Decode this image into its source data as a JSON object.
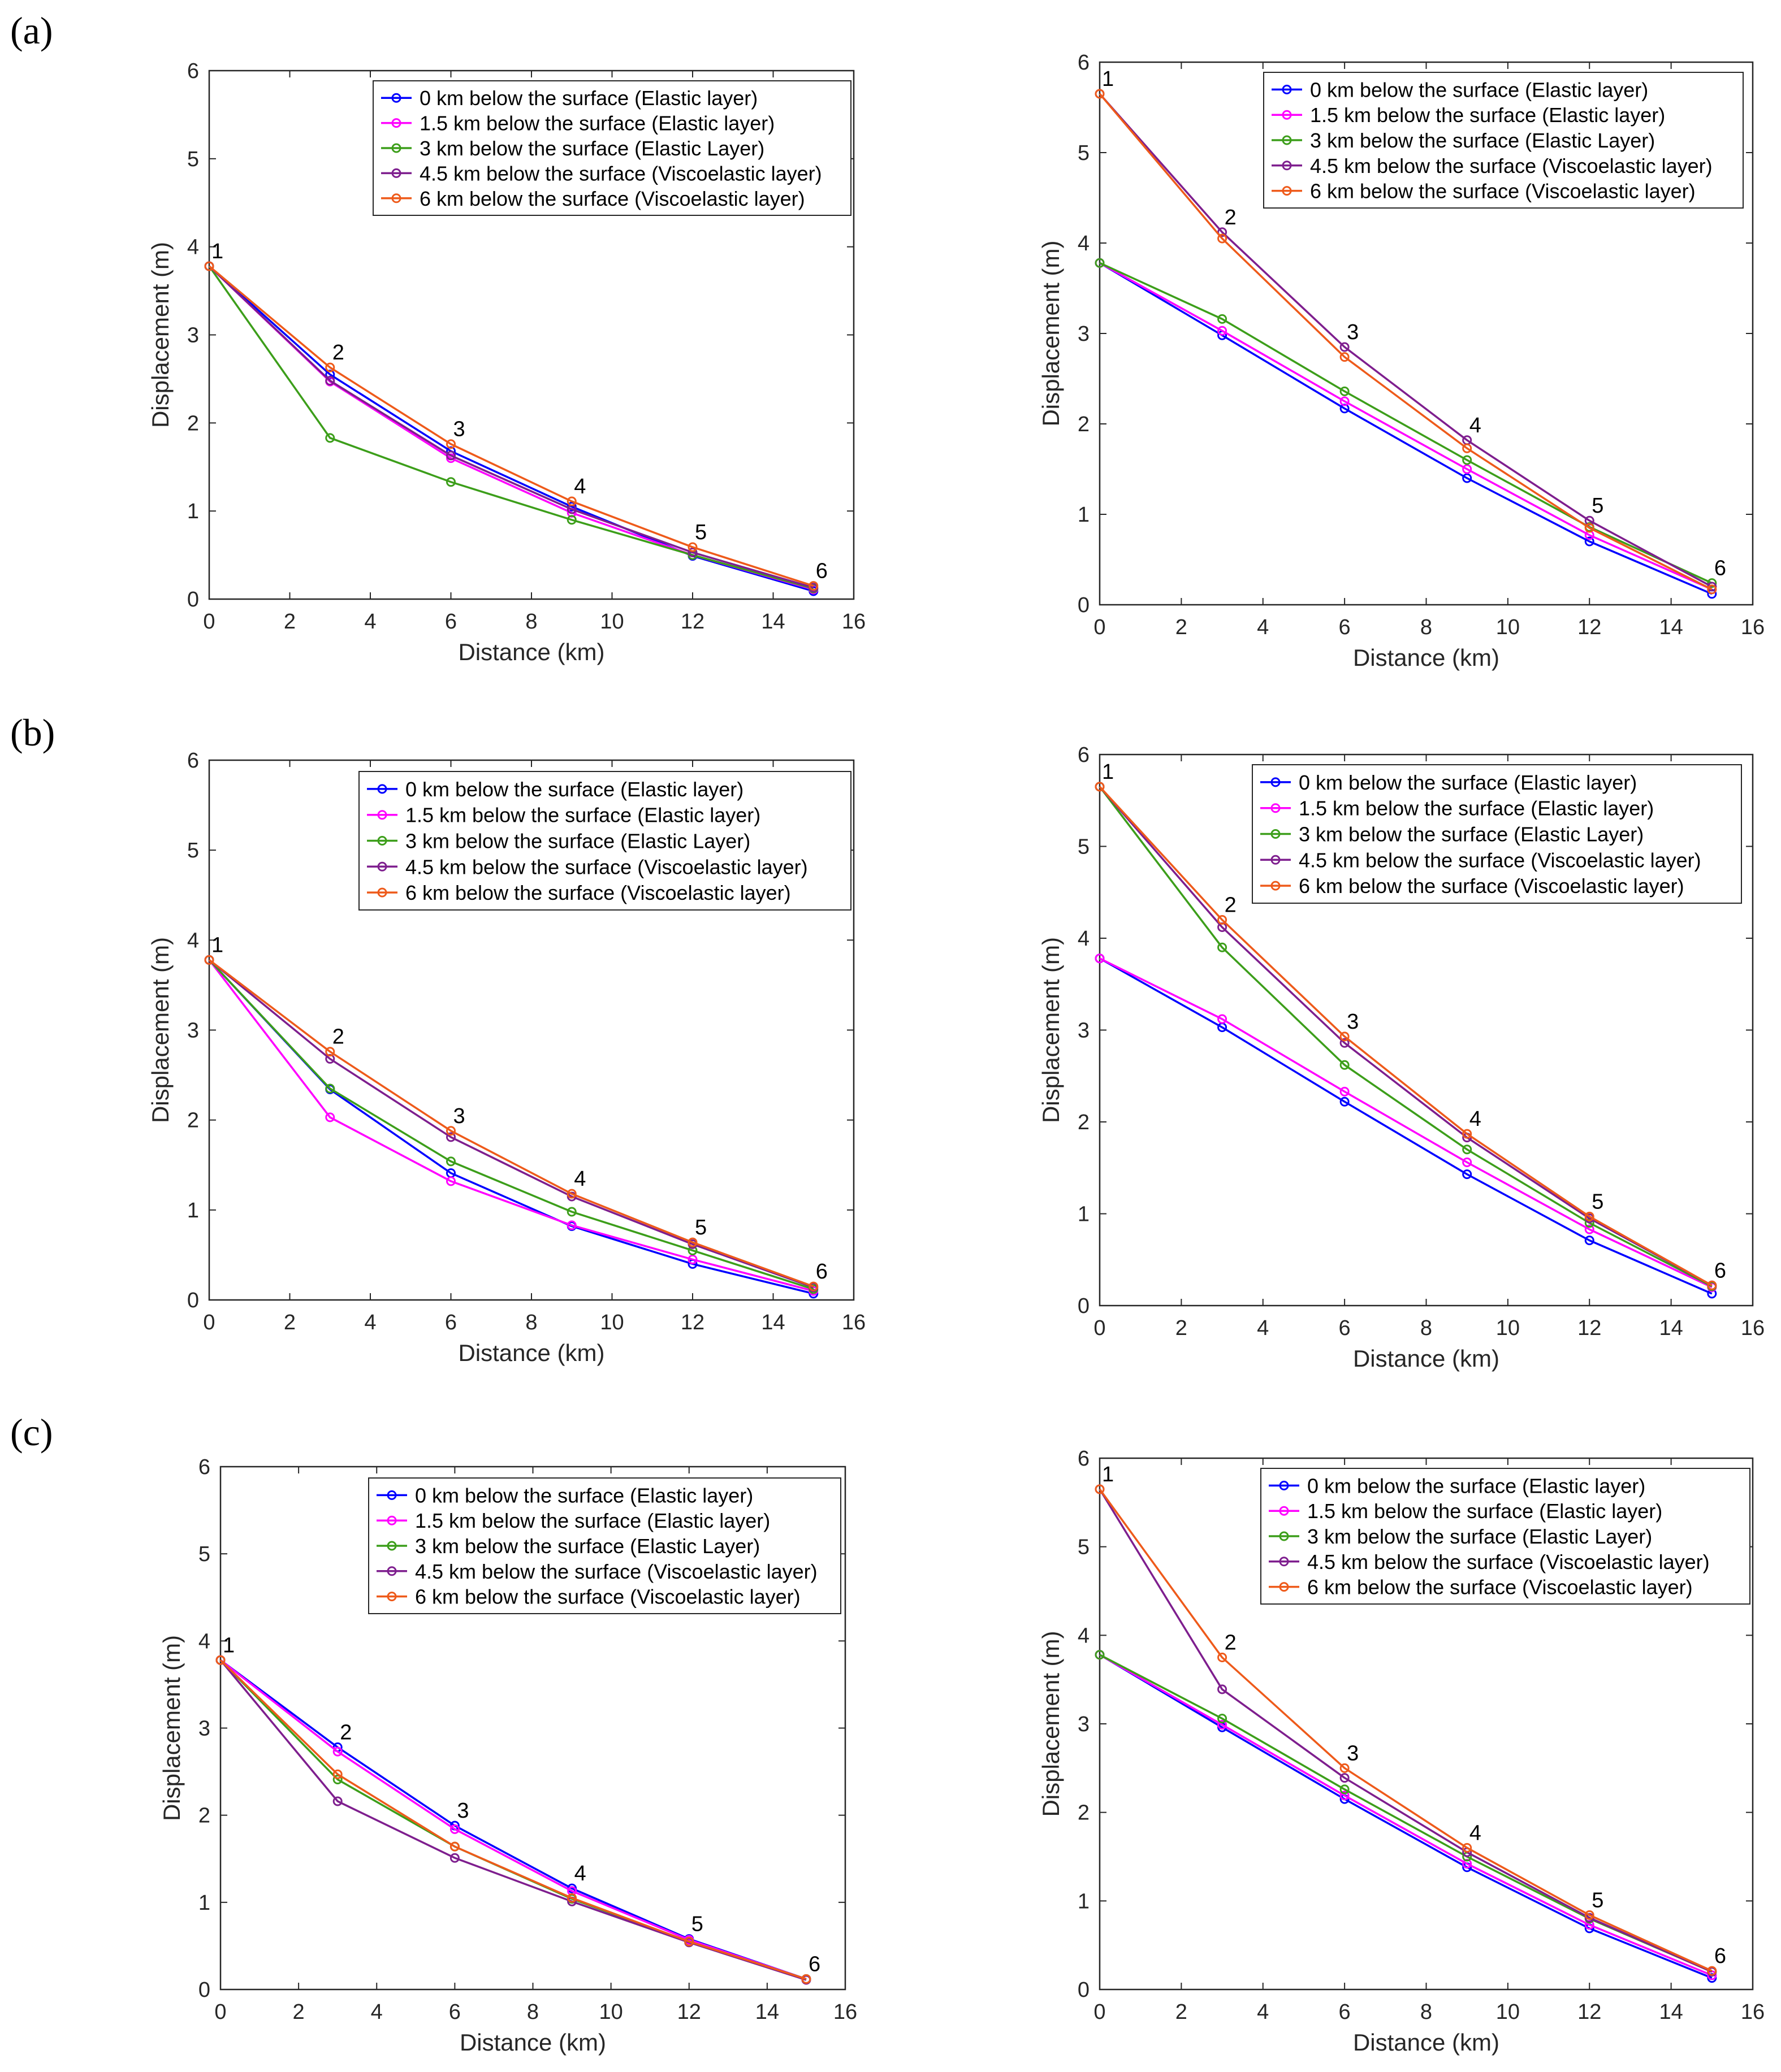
{
  "row_labels": [
    "(a)",
    "(b)",
    "(c)"
  ],
  "chart_data": [
    {
      "type": "line",
      "row": "(a)",
      "side": "left",
      "title": "",
      "xlabel": "Distance (km)",
      "ylabel": "Displacement (m)",
      "xlim": [
        0,
        16
      ],
      "ylim": [
        0,
        6
      ],
      "grid": false,
      "xticks": [
        0,
        2,
        4,
        6,
        8,
        10,
        12,
        14,
        16
      ],
      "yticks": [
        0,
        1,
        2,
        3,
        4,
        5,
        6
      ],
      "legend_position": "top-right",
      "x": [
        0,
        3,
        6,
        9,
        12,
        15
      ],
      "point_labels": [
        "1",
        "2",
        "3",
        "4",
        "5",
        "6"
      ],
      "series": [
        {
          "name": "0 km below the surface (Elastic layer)",
          "color": "#0000ff",
          "values": [
            3.78,
            2.55,
            1.68,
            1.05,
            0.49,
            0.09
          ]
        },
        {
          "name": "1.5 km below the surface (Elastic layer)",
          "color": "#ff00ff",
          "values": [
            3.78,
            2.47,
            1.6,
            0.98,
            0.5,
            0.11
          ]
        },
        {
          "name": "3 km below the surface (Elastic Layer)",
          "color": "#3c9e1a",
          "values": [
            3.78,
            1.83,
            1.33,
            0.9,
            0.5,
            0.12
          ]
        },
        {
          "name": "4.5 km below the surface (Viscoelastic layer)",
          "color": "#7e1e8e",
          "values": [
            3.78,
            2.48,
            1.63,
            1.02,
            0.53,
            0.13
          ]
        },
        {
          "name": "6 km below the surface (Viscoelastic layer)",
          "color": "#ee5a1a",
          "values": [
            3.78,
            2.63,
            1.76,
            1.11,
            0.59,
            0.15
          ]
        }
      ]
    },
    {
      "type": "line",
      "row": "(a)",
      "side": "right",
      "title": "",
      "xlabel": "Distance (km)",
      "ylabel": "Displacement (m)",
      "xlim": [
        0,
        16
      ],
      "ylim": [
        0,
        6
      ],
      "grid": false,
      "xticks": [
        0,
        2,
        4,
        6,
        8,
        10,
        12,
        14,
        16
      ],
      "yticks": [
        0,
        1,
        2,
        3,
        4,
        5,
        6
      ],
      "legend_position": "top-right",
      "x": [
        0,
        3,
        6,
        9,
        12,
        15
      ],
      "point_labels": [
        "1",
        "2",
        "3",
        "4",
        "5",
        "6"
      ],
      "series": [
        {
          "name": "0 km below the surface (Elastic layer)",
          "color": "#0000ff",
          "values": [
            3.78,
            2.98,
            2.17,
            1.4,
            0.7,
            0.12
          ]
        },
        {
          "name": "1.5 km below the surface (Elastic layer)",
          "color": "#ff00ff",
          "values": [
            3.78,
            3.03,
            2.25,
            1.5,
            0.77,
            0.17
          ]
        },
        {
          "name": "3 km below the surface (Elastic Layer)",
          "color": "#3c9e1a",
          "values": [
            3.78,
            3.16,
            2.36,
            1.6,
            0.86,
            0.24
          ]
        },
        {
          "name": "4.5 km below the surface (Viscoelastic layer)",
          "color": "#7e1e8e",
          "values": [
            5.65,
            4.12,
            2.85,
            1.82,
            0.93,
            0.2
          ]
        },
        {
          "name": "6 km below the surface (Viscoelastic layer)",
          "color": "#ee5a1a",
          "values": [
            5.65,
            4.05,
            2.74,
            1.73,
            0.85,
            0.17
          ]
        }
      ]
    },
    {
      "type": "line",
      "row": "(b)",
      "side": "left",
      "title": "",
      "xlabel": "Distance (km)",
      "ylabel": "Displacement (m)",
      "xlim": [
        0,
        16
      ],
      "ylim": [
        0,
        6
      ],
      "grid": false,
      "xticks": [
        0,
        2,
        4,
        6,
        8,
        10,
        12,
        14,
        16
      ],
      "yticks": [
        0,
        1,
        2,
        3,
        4,
        5,
        6
      ],
      "legend_position": "top-right",
      "x": [
        0,
        3,
        6,
        9,
        12,
        15
      ],
      "point_labels": [
        "1",
        "2",
        "3",
        "4",
        "5",
        "6"
      ],
      "series": [
        {
          "name": "0 km below the surface (Elastic layer)",
          "color": "#0000ff",
          "values": [
            3.78,
            2.34,
            1.41,
            0.82,
            0.4,
            0.07
          ]
        },
        {
          "name": "1.5 km below the surface (Elastic layer)",
          "color": "#ff00ff",
          "values": [
            3.78,
            2.03,
            1.32,
            0.83,
            0.45,
            0.1
          ]
        },
        {
          "name": "3 km below the surface (Elastic Layer)",
          "color": "#3c9e1a",
          "values": [
            3.78,
            2.35,
            1.54,
            0.98,
            0.55,
            0.12
          ]
        },
        {
          "name": "4.5 km below the surface (Viscoelastic layer)",
          "color": "#7e1e8e",
          "values": [
            3.78,
            2.68,
            1.81,
            1.15,
            0.62,
            0.14
          ]
        },
        {
          "name": "6 km below the surface (Viscoelastic layer)",
          "color": "#ee5a1a",
          "values": [
            3.78,
            2.76,
            1.88,
            1.18,
            0.64,
            0.15
          ]
        }
      ]
    },
    {
      "type": "line",
      "row": "(b)",
      "side": "right",
      "title": "",
      "xlabel": "Distance (km)",
      "ylabel": "Displacement (m)",
      "xlim": [
        0,
        16
      ],
      "ylim": [
        0,
        6
      ],
      "grid": false,
      "xticks": [
        0,
        2,
        4,
        6,
        8,
        10,
        12,
        14,
        16
      ],
      "yticks": [
        0,
        1,
        2,
        3,
        4,
        5,
        6
      ],
      "legend_position": "top-right",
      "x": [
        0,
        3,
        6,
        9,
        12,
        15
      ],
      "point_labels": [
        "1",
        "2",
        "3",
        "4",
        "5",
        "6"
      ],
      "series": [
        {
          "name": "0 km below the surface (Elastic layer)",
          "color": "#0000ff",
          "values": [
            3.78,
            3.03,
            2.22,
            1.43,
            0.71,
            0.13
          ]
        },
        {
          "name": "1.5 km below the surface (Elastic layer)",
          "color": "#ff00ff",
          "values": [
            3.78,
            3.12,
            2.33,
            1.56,
            0.83,
            0.2
          ]
        },
        {
          "name": "3 km below the surface (Elastic Layer)",
          "color": "#3c9e1a",
          "values": [
            5.65,
            3.9,
            2.62,
            1.7,
            0.9,
            0.21
          ]
        },
        {
          "name": "4.5 km below the surface (Viscoelastic layer)",
          "color": "#7e1e8e",
          "values": [
            5.65,
            4.12,
            2.86,
            1.83,
            0.95,
            0.22
          ]
        },
        {
          "name": "6 km below the surface (Viscoelastic layer)",
          "color": "#ee5a1a",
          "values": [
            5.65,
            4.2,
            2.93,
            1.87,
            0.97,
            0.22
          ]
        }
      ]
    },
    {
      "type": "line",
      "row": "(c)",
      "side": "left",
      "title": "",
      "xlabel": "Distance (km)",
      "ylabel": "Displacement (m)",
      "xlim": [
        0,
        16
      ],
      "ylim": [
        0,
        6
      ],
      "grid": false,
      "xticks": [
        0,
        2,
        4,
        6,
        8,
        10,
        12,
        14,
        16
      ],
      "yticks": [
        0,
        1,
        2,
        3,
        4,
        5,
        6
      ],
      "legend_position": "top-right",
      "x": [
        0,
        3,
        6,
        9,
        12,
        15
      ],
      "point_labels": [
        "1",
        "2",
        "3",
        "4",
        "5",
        "6"
      ],
      "series": [
        {
          "name": "0 km below the surface (Elastic layer)",
          "color": "#0000ff",
          "values": [
            3.78,
            2.78,
            1.88,
            1.16,
            0.58,
            0.12
          ]
        },
        {
          "name": "1.5 km below the surface (Elastic layer)",
          "color": "#ff00ff",
          "values": [
            3.78,
            2.73,
            1.84,
            1.13,
            0.57,
            0.12
          ]
        },
        {
          "name": "3 km below the surface (Elastic Layer)",
          "color": "#3c9e1a",
          "values": [
            3.78,
            2.41,
            1.64,
            1.04,
            0.55,
            0.12
          ]
        },
        {
          "name": "4.5 km below the surface (Viscoelastic layer)",
          "color": "#7e1e8e",
          "values": [
            3.78,
            2.16,
            1.51,
            1.01,
            0.54,
            0.11
          ]
        },
        {
          "name": "6 km below the surface (Viscoelastic layer)",
          "color": "#ee5a1a",
          "values": [
            3.78,
            2.47,
            1.64,
            1.05,
            0.55,
            0.12
          ]
        }
      ]
    },
    {
      "type": "line",
      "row": "(c)",
      "side": "right",
      "title": "",
      "xlabel": "Distance (km)",
      "ylabel": "Displacement (m)",
      "xlim": [
        0,
        16
      ],
      "ylim": [
        0,
        6
      ],
      "grid": false,
      "xticks": [
        0,
        2,
        4,
        6,
        8,
        10,
        12,
        14,
        16
      ],
      "yticks": [
        0,
        1,
        2,
        3,
        4,
        5,
        6
      ],
      "legend_position": "top-right",
      "x": [
        0,
        3,
        6,
        9,
        12,
        15
      ],
      "point_labels": [
        "1",
        "2",
        "3",
        "4",
        "5",
        "6"
      ],
      "series": [
        {
          "name": "0 km below the surface (Elastic layer)",
          "color": "#0000ff",
          "values": [
            3.78,
            2.96,
            2.15,
            1.38,
            0.69,
            0.13
          ]
        },
        {
          "name": "1.5 km below the surface (Elastic layer)",
          "color": "#ff00ff",
          "values": [
            3.78,
            2.99,
            2.19,
            1.42,
            0.73,
            0.16
          ]
        },
        {
          "name": "3 km below the surface (Elastic Layer)",
          "color": "#3c9e1a",
          "values": [
            3.78,
            3.06,
            2.26,
            1.5,
            0.8,
            0.2
          ]
        },
        {
          "name": "4.5 km below the surface (Viscoelastic layer)",
          "color": "#7e1e8e",
          "values": [
            5.65,
            3.39,
            2.39,
            1.55,
            0.81,
            0.2
          ]
        },
        {
          "name": "6 km below the surface (Viscoelastic layer)",
          "color": "#ee5a1a",
          "values": [
            5.65,
            3.75,
            2.5,
            1.6,
            0.84,
            0.21
          ]
        }
      ]
    }
  ]
}
